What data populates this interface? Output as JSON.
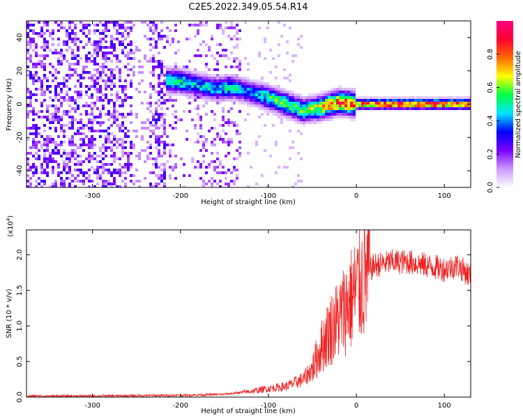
{
  "title": "C2E5.2022.349.05.54.R14",
  "chart_data": [
    {
      "type": "heatmap",
      "xlabel": "Height of straight line (km)",
      "ylabel": "Frequency (Hz)",
      "xlim": [
        -375,
        130
      ],
      "ylim": [
        -50,
        50
      ],
      "xticks": [
        -300,
        -200,
        -100,
        0,
        100
      ],
      "yticks": [
        -40,
        -20,
        0,
        20,
        40
      ],
      "colorbar": {
        "label": "Normalized spectral amplitude",
        "range": [
          0,
          1
        ],
        "ticks": [
          "0.0",
          "0.2",
          "0.4",
          "0.6",
          "0.8"
        ],
        "tick_values": [
          0,
          0.2,
          0.4,
          0.6,
          0.8
        ],
        "colors": [
          "#ffffff",
          "#cc99ff",
          "#7a00ff",
          "#0000ff",
          "#00e5ff",
          "#00ff44",
          "#ffff00",
          "#ff6a00",
          "#ff0033",
          "#ff0080"
        ]
      },
      "ridge": [
        {
          "x": -210,
          "f": 14,
          "amp": 0.55
        },
        {
          "x": -195,
          "f": 13,
          "amp": 0.5
        },
        {
          "x": -160,
          "f": 9,
          "amp": 0.45
        },
        {
          "x": -140,
          "f": 10,
          "amp": 0.5
        },
        {
          "x": -120,
          "f": 7,
          "amp": 0.4
        },
        {
          "x": -100,
          "f": 4,
          "amp": 0.55
        },
        {
          "x": -80,
          "f": 0,
          "amp": 0.6
        },
        {
          "x": -60,
          "f": -4,
          "amp": 0.6
        },
        {
          "x": -40,
          "f": -2,
          "amp": 0.7
        },
        {
          "x": -20,
          "f": 1,
          "amp": 0.9
        },
        {
          "x": 0,
          "f": 0,
          "amp": 0.85
        },
        {
          "x": 40,
          "f": 0,
          "amp": 0.95
        },
        {
          "x": 80,
          "f": 0,
          "amp": 0.95
        },
        {
          "x": 125,
          "f": 0,
          "amp": 0.9
        }
      ]
    },
    {
      "type": "line",
      "xlabel": "Height of straight line (km)",
      "ylabel": "SNR (10 * v/v)",
      "scale_label": "(x10",
      "scale_exponent": "4",
      "scale_suffix": ")",
      "xlim": [
        -375,
        130
      ],
      "ylim": [
        0,
        23500
      ],
      "xticks": [
        -300,
        -200,
        -100,
        0,
        100
      ],
      "yticks": [
        0,
        5000,
        10000,
        15000,
        20000
      ],
      "ytick_labels": [
        "0.0",
        "0.5",
        "1.0",
        "1.5",
        "2.0"
      ],
      "series": [
        {
          "color": "#ee2222",
          "x": [
            -375,
            -300,
            -200,
            -150,
            -120,
            -100,
            -80,
            -60,
            -50,
            -40,
            -30,
            -20,
            -10,
            0,
            10,
            20,
            40,
            60,
            80,
            100,
            115,
            130
          ],
          "y": [
            150,
            150,
            250,
            400,
            800,
            1200,
            1500,
            2500,
            4000,
            7000,
            9500,
            11000,
            13000,
            15000,
            17000,
            18500,
            19000,
            19000,
            18500,
            18000,
            18500,
            17000
          ]
        }
      ]
    }
  ]
}
